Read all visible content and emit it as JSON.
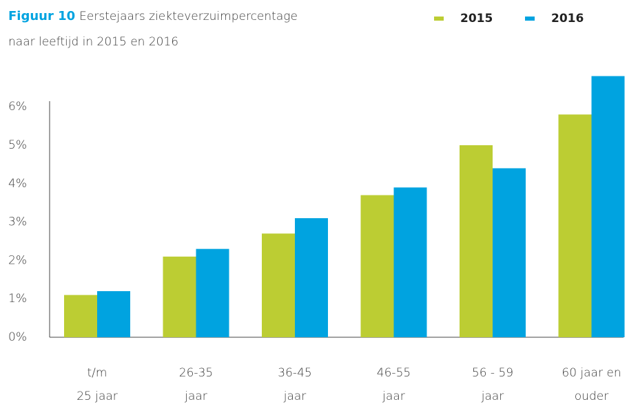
{
  "chart_data": {
    "type": "bar",
    "title_label": "Figuur 10",
    "title": [
      "Eerstejaars ziekteverzuimpercentage",
      "naar leeftijd in 2015 en 2016"
    ],
    "categories": [
      [
        "t/m",
        "25 jaar"
      ],
      [
        "26-35",
        "jaar"
      ],
      [
        "36-45",
        "jaar"
      ],
      [
        "46-55",
        "jaar"
      ],
      [
        "56 - 59",
        "jaar"
      ],
      [
        "60 jaar en",
        "ouder"
      ]
    ],
    "series": [
      {
        "name": "2015",
        "color": "#bccd33",
        "values": [
          1.1,
          2.1,
          2.7,
          3.7,
          5.0,
          5.8
        ]
      },
      {
        "name": "2016",
        "color": "#00a3e0",
        "values": [
          1.2,
          2.3,
          3.1,
          3.9,
          4.4,
          6.8
        ]
      }
    ],
    "ylim": [
      0,
      7
    ],
    "yticks": [
      {
        "value": 0,
        "label": "0%"
      },
      {
        "value": 1,
        "label": "1%"
      },
      {
        "value": 2,
        "label": "2%"
      },
      {
        "value": 3,
        "label": "3%"
      },
      {
        "value": 4,
        "label": "4%"
      },
      {
        "value": 5,
        "label": "5%"
      },
      {
        "value": 6,
        "label": "6%"
      }
    ],
    "grid": false,
    "legend": "top-right"
  }
}
